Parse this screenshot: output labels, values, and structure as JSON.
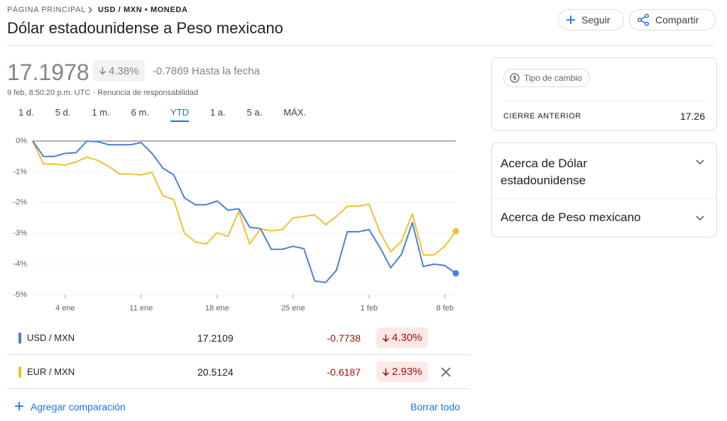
{
  "breadcrumb": {
    "home": "PÁGINA PRINCIPAL",
    "current": "USD / MXN • MONEDA"
  },
  "header": {
    "title": "Dólar estadounidense a Peso mexicano",
    "follow": "Seguir",
    "share": "Compartir"
  },
  "quote": {
    "price": "17.1978",
    "change_pct": "4.38%",
    "change": "-0.7869",
    "period": "Hasta la fecha",
    "timestamp": "9 feb, 8:50:20 p.m. UTC · Renuncia de responsabilidad"
  },
  "ranges": {
    "items": [
      "1 d.",
      "5 d.",
      "1 m.",
      "6 m.",
      "YTD",
      "1 a.",
      "5 a.",
      "MÁX."
    ],
    "selected": 4
  },
  "chart_data": {
    "type": "line",
    "x": [
      1,
      2,
      3,
      4,
      5,
      6,
      7,
      8,
      9,
      10,
      11,
      12,
      13,
      14,
      15,
      16,
      17,
      18,
      19,
      20,
      21,
      22,
      23,
      24,
      25,
      26,
      27,
      28,
      29,
      30,
      31,
      32,
      33,
      34,
      35,
      36,
      37,
      38,
      39,
      40
    ],
    "series": [
      {
        "name": "USD / MXN",
        "color": "#4a80d9",
        "values": [
          0,
          -0.5,
          -0.5,
          -0.4,
          -0.38,
          0,
          -0.02,
          -0.12,
          -0.12,
          -0.12,
          -0.05,
          -0.4,
          -0.88,
          -1.1,
          -1.85,
          -2.07,
          -2.07,
          -1.95,
          -2.25,
          -2.2,
          -2.8,
          -2.85,
          -3.52,
          -3.52,
          -3.42,
          -3.5,
          -4.55,
          -4.6,
          -4.2,
          -2.95,
          -2.95,
          -2.88,
          -3.45,
          -4.12,
          -3.68,
          -2.65,
          -4.08,
          -4.0,
          -4.05,
          -4.3
        ]
      },
      {
        "name": "EUR / MXN",
        "color": "#f2c12e",
        "values": [
          0,
          -0.75,
          -0.75,
          -0.78,
          -0.68,
          -0.52,
          -0.63,
          -0.82,
          -1.07,
          -1.07,
          -1.1,
          -1.02,
          -1.78,
          -1.9,
          -3.0,
          -3.28,
          -3.35,
          -2.98,
          -3.1,
          -2.28,
          -3.35,
          -2.85,
          -2.92,
          -2.88,
          -2.5,
          -2.45,
          -2.4,
          -2.72,
          -2.45,
          -2.12,
          -2.12,
          -2.05,
          -2.95,
          -3.6,
          -3.25,
          -2.37,
          -3.7,
          -3.7,
          -3.42,
          -2.93
        ]
      }
    ],
    "xlim": [
      1,
      40
    ],
    "xticks": [
      {
        "value": 4,
        "label": "4 ene"
      },
      {
        "value": 11,
        "label": "11 ene"
      },
      {
        "value": 18,
        "label": "18 ene"
      },
      {
        "value": 25,
        "label": "25 ene"
      },
      {
        "value": 32,
        "label": "1 feb"
      },
      {
        "value": 39,
        "label": "8 feb"
      }
    ],
    "ylim": [
      -5,
      0
    ],
    "yticks": [
      {
        "value": 0,
        "label": "0%"
      },
      {
        "value": -1,
        "label": "-1%"
      },
      {
        "value": -2,
        "label": "-2%"
      },
      {
        "value": -3,
        "label": "-3%"
      },
      {
        "value": -4,
        "label": "-4%"
      },
      {
        "value": -5,
        "label": "-5%"
      }
    ],
    "grid": true
  },
  "comparison": {
    "rows": [
      {
        "price": "17.2109",
        "change": "-0.7738",
        "change_pct": "4.30%"
      },
      {
        "price": "20.5124",
        "change": "-0.6187",
        "change_pct": "2.93%"
      }
    ],
    "add": "Agregar comparación",
    "clear": "Borrar todo"
  },
  "sidebar": {
    "chip": "Tipo de cambio",
    "prev_close_label": "CIERRE ANTERIOR",
    "prev_close": "17.26",
    "about": [
      "Acerca de Dólar estadounidense",
      "Acerca de Peso mexicano"
    ]
  }
}
